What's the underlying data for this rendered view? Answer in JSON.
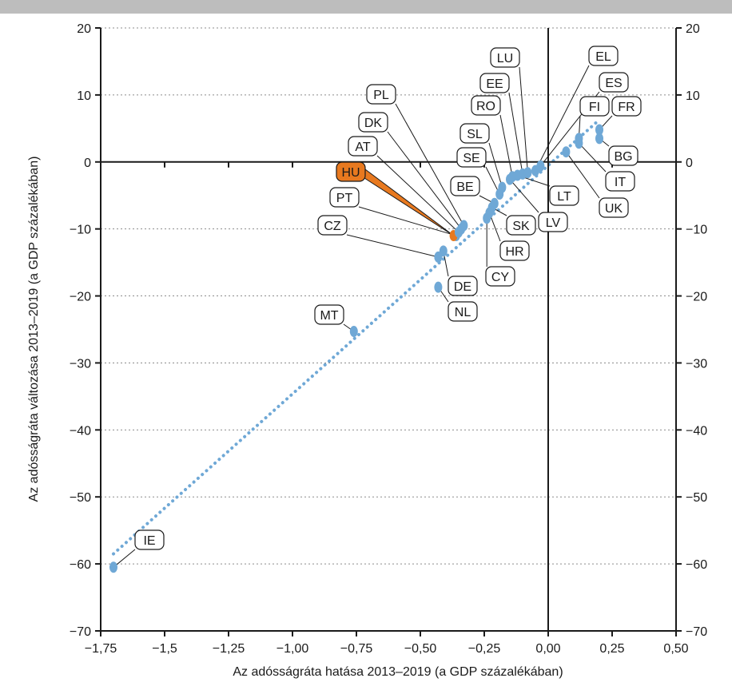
{
  "chart_data": {
    "type": "scatter",
    "title": "",
    "xlabel": "Az adósságráta hatása 2013–2019 (a GDP százalékában)",
    "ylabel": "Az adósságráta változása 2013–2019 (a GDP százalékában)",
    "xlim": [
      -1.75,
      0.5
    ],
    "ylim": [
      -70,
      20
    ],
    "x_ticks": [
      -1.75,
      -1.5,
      -1.25,
      -1.0,
      -0.75,
      -0.5,
      -0.25,
      0.0,
      0.25,
      0.5
    ],
    "x_tick_labels": [
      "−1,75",
      "−1,5",
      "−1,25",
      "−1,00",
      "−0,75",
      "−0,50",
      "−0,25",
      "0,00",
      "0,25",
      "0,50"
    ],
    "y_ticks": [
      20,
      10,
      0,
      -10,
      -20,
      -30,
      -40,
      -50,
      -60,
      -70
    ],
    "y_tick_labels": [
      "20",
      "10",
      "0",
      "−10",
      "−20",
      "−30",
      "−40",
      "−50",
      "−60",
      "−70"
    ],
    "grid": "horizontal-dotted",
    "trendline": {
      "style": "dotted",
      "x": [
        -1.7,
        0.2
      ],
      "y": [
        -58.5,
        6.3
      ]
    },
    "colors": {
      "point": "#6fa8d6",
      "highlight": "#e8791f",
      "trend": "#6fa8d6",
      "axis": "#1a1a1a",
      "band": "#bdbdbd"
    },
    "points": [
      {
        "label": "IE",
        "x": -1.7,
        "y": -60.5
      },
      {
        "label": "MT",
        "x": -0.76,
        "y": -25.3
      },
      {
        "label": "NL",
        "x": -0.43,
        "y": -18.7
      },
      {
        "label": "DE",
        "x": -0.41,
        "y": -13.3
      },
      {
        "label": "CZ",
        "x": -0.43,
        "y": -14.2
      },
      {
        "label": "PT",
        "x": -0.36,
        "y": -11.0
      },
      {
        "label": "HU",
        "x": -0.37,
        "y": -11.0,
        "highlight": true
      },
      {
        "label": "AT",
        "x": -0.35,
        "y": -10.5
      },
      {
        "label": "DK",
        "x": -0.34,
        "y": -10.0
      },
      {
        "label": "PL",
        "x": -0.33,
        "y": -9.5
      },
      {
        "label": "CY",
        "x": -0.24,
        "y": -8.4
      },
      {
        "label": "HR",
        "x": -0.23,
        "y": -7.6
      },
      {
        "label": "SK",
        "x": -0.22,
        "y": -6.8
      },
      {
        "label": "BE",
        "x": -0.21,
        "y": -6.2
      },
      {
        "label": "SE",
        "x": -0.19,
        "y": -4.8
      },
      {
        "label": "SL",
        "x": -0.18,
        "y": -3.8
      },
      {
        "label": "LV",
        "x": -0.15,
        "y": -2.6
      },
      {
        "label": "RO",
        "x": -0.14,
        "y": -2.2
      },
      {
        "label": "LT",
        "x": -0.12,
        "y": -2.0
      },
      {
        "label": "EE",
        "x": -0.1,
        "y": -1.8
      },
      {
        "label": "LU",
        "x": -0.08,
        "y": -1.6
      },
      {
        "label": "EL",
        "x": -0.05,
        "y": -1.3
      },
      {
        "label": "ES",
        "x": -0.03,
        "y": -0.6
      },
      {
        "label": "UK",
        "x": 0.07,
        "y": 1.5
      },
      {
        "label": "IT",
        "x": 0.12,
        "y": 2.8
      },
      {
        "label": "FI",
        "x": 0.12,
        "y": 3.5
      },
      {
        "label": "BG",
        "x": 0.2,
        "y": 3.5
      },
      {
        "label": "FR",
        "x": 0.2,
        "y": 4.8
      }
    ]
  }
}
